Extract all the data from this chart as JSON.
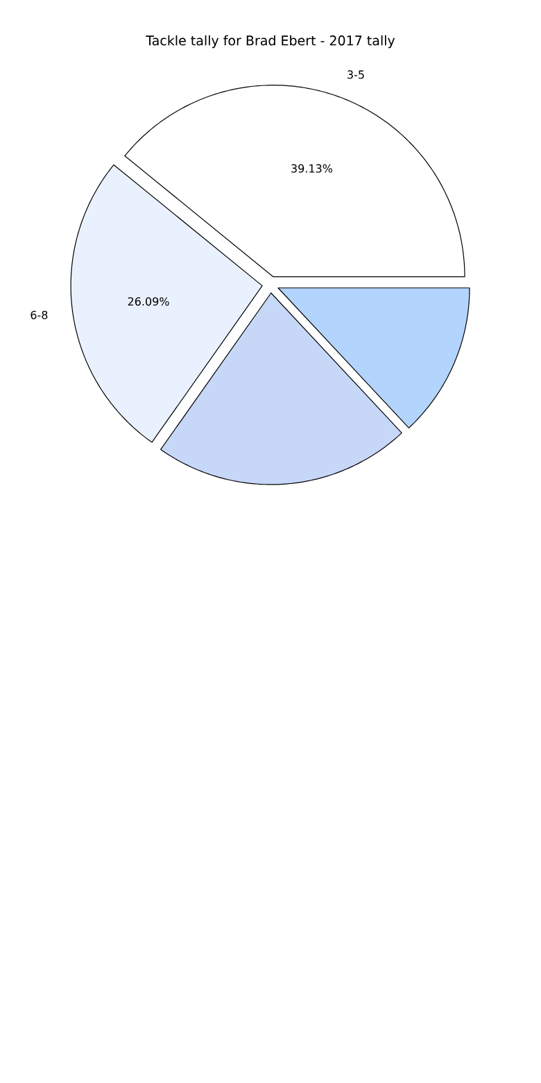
{
  "chart_data": {
    "type": "pie",
    "title": "Tackle tally for Brad Ebert - 2017 tally",
    "categories": [
      "3-5",
      "6-8",
      null,
      null
    ],
    "values": [
      39.13,
      26.09,
      21.74,
      13.04
    ],
    "value_labels": [
      "39.13%",
      "26.09%",
      null,
      null
    ],
    "colors": [
      "#ffffff",
      "#eaf1fe",
      "#c6d7f8",
      "#b3d4fc"
    ]
  }
}
